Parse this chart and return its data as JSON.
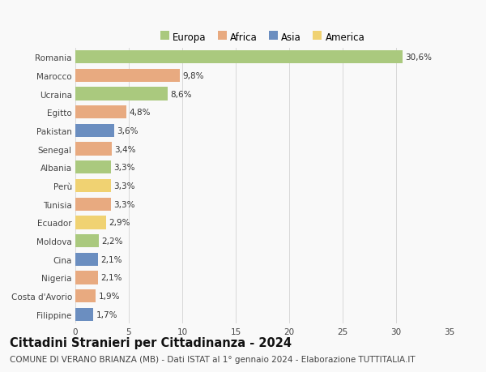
{
  "countries": [
    "Romania",
    "Marocco",
    "Ucraina",
    "Egitto",
    "Pakistan",
    "Senegal",
    "Albania",
    "Perù",
    "Tunisia",
    "Ecuador",
    "Moldova",
    "Cina",
    "Nigeria",
    "Costa d'Avorio",
    "Filippine"
  ],
  "values": [
    30.6,
    9.8,
    8.6,
    4.8,
    3.6,
    3.4,
    3.3,
    3.3,
    3.3,
    2.9,
    2.2,
    2.1,
    2.1,
    1.9,
    1.7
  ],
  "labels": [
    "30,6%",
    "9,8%",
    "8,6%",
    "4,8%",
    "3,6%",
    "3,4%",
    "3,3%",
    "3,3%",
    "3,3%",
    "2,9%",
    "2,2%",
    "2,1%",
    "2,1%",
    "1,9%",
    "1,7%"
  ],
  "continents": [
    "Europa",
    "Africa",
    "Europa",
    "Africa",
    "Asia",
    "Africa",
    "Europa",
    "America",
    "Africa",
    "America",
    "Europa",
    "Asia",
    "Africa",
    "Africa",
    "Asia"
  ],
  "colors": {
    "Europa": "#aac97e",
    "Africa": "#e8aa80",
    "Asia": "#6b8ec0",
    "America": "#f0d272"
  },
  "xlim": [
    0,
    35
  ],
  "xticks": [
    0,
    5,
    10,
    15,
    20,
    25,
    30,
    35
  ],
  "title": "Cittadini Stranieri per Cittadinanza - 2024",
  "subtitle": "COMUNE DI VERANO BRIANZA (MB) - Dati ISTAT al 1° gennaio 2024 - Elaborazione TUTTITALIA.IT",
  "background_color": "#f9f9f9",
  "grid_color": "#d8d8d8",
  "bar_height": 0.72,
  "label_fontsize": 7.5,
  "tick_fontsize": 7.5,
  "title_fontsize": 10.5,
  "subtitle_fontsize": 7.5
}
